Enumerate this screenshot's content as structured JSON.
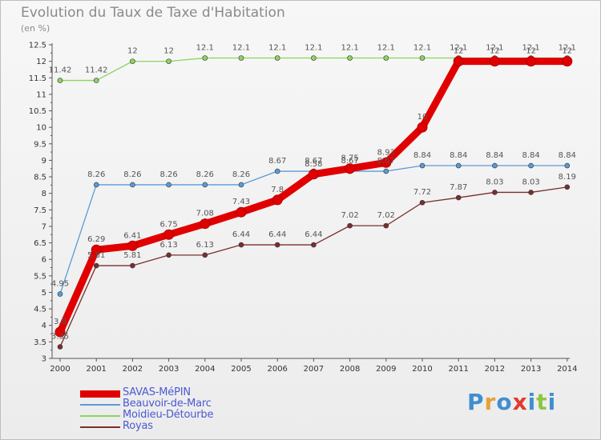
{
  "chart_data": {
    "type": "line",
    "title": "Evolution du Taux de Taxe d'Habitation",
    "subtitle": "(en %)",
    "x": [
      "2000",
      "2001",
      "2002",
      "2003",
      "2004",
      "2005",
      "2006",
      "2007",
      "2008",
      "2009",
      "2010",
      "2011",
      "2012",
      "2013",
      "2014"
    ],
    "ylim": [
      3,
      12.5
    ],
    "yticks": [
      "3",
      "3.5",
      "4",
      "4.5",
      "5",
      "5.5",
      "6",
      "6.5",
      "7",
      "7.5",
      "8",
      "8.5",
      "9",
      "9.5",
      "10",
      "10.5",
      "11",
      "11.5",
      "12",
      "12.5"
    ],
    "grid": false,
    "legend_position": "bottom-left",
    "series": [
      {
        "name": "SAVAS-MéPIN",
        "color": "#e00000",
        "values": [
          3.8,
          6.29,
          6.41,
          6.75,
          7.08,
          7.43,
          7.8,
          8.58,
          8.75,
          8.93,
          10,
          12,
          12,
          12,
          12
        ],
        "labels": [
          "3.8",
          "6.29",
          "6.41",
          "6.75",
          "7.08",
          "7.43",
          "7.8",
          "8.58",
          "8.75",
          "8.93",
          "10",
          "12",
          "12",
          "12",
          "12"
        ]
      },
      {
        "name": "Beauvoir-de-Marc",
        "color": "#5b9bd5",
        "values": [
          4.95,
          8.26,
          8.26,
          8.26,
          8.26,
          8.26,
          8.67,
          8.67,
          8.67,
          8.67,
          8.84,
          8.84,
          8.84,
          8.84,
          8.84
        ],
        "labels": [
          "4.95",
          "8.26",
          "8.26",
          "8.26",
          "8.26",
          "8.26",
          "8.67",
          "8.67",
          "8.67",
          "8.67",
          "8.84",
          "8.84",
          "8.84",
          "8.84",
          "8.84"
        ]
      },
      {
        "name": "Moidieu-Détourbe",
        "color": "#8fd460",
        "values": [
          11.42,
          11.42,
          12,
          12,
          12.1,
          12.1,
          12.1,
          12.1,
          12.1,
          12.1,
          12.1,
          12.1,
          12.1,
          12.1,
          12.1
        ],
        "labels": [
          "11.42",
          "11.42",
          "12",
          "12",
          "12.1",
          "12.1",
          "12.1",
          "12.1",
          "12.1",
          "12.1",
          "12.1",
          "12.1",
          "12.1",
          "12.1",
          "12.1"
        ]
      },
      {
        "name": "Royas",
        "color": "#7a2e2e",
        "values": [
          3.35,
          5.81,
          5.81,
          6.13,
          6.13,
          6.44,
          6.44,
          6.44,
          7.02,
          7.02,
          7.72,
          7.87,
          8.03,
          8.03,
          8.19
        ],
        "labels": [
          "3.35",
          "5.81",
          "5.81",
          "6.13",
          "6.13",
          "6.44",
          "6.44",
          "6.44",
          "7.02",
          "7.02",
          "7.72",
          "7.87",
          "8.03",
          "8.03",
          "8.19"
        ]
      }
    ]
  },
  "logo": {
    "text": "Proxiti",
    "colors": [
      "#3f8fd0",
      "#e8a13a",
      "#3f8fd0",
      "#e23b2e",
      "#3f8fd0",
      "#8ec641",
      "#3f8fd0"
    ]
  }
}
